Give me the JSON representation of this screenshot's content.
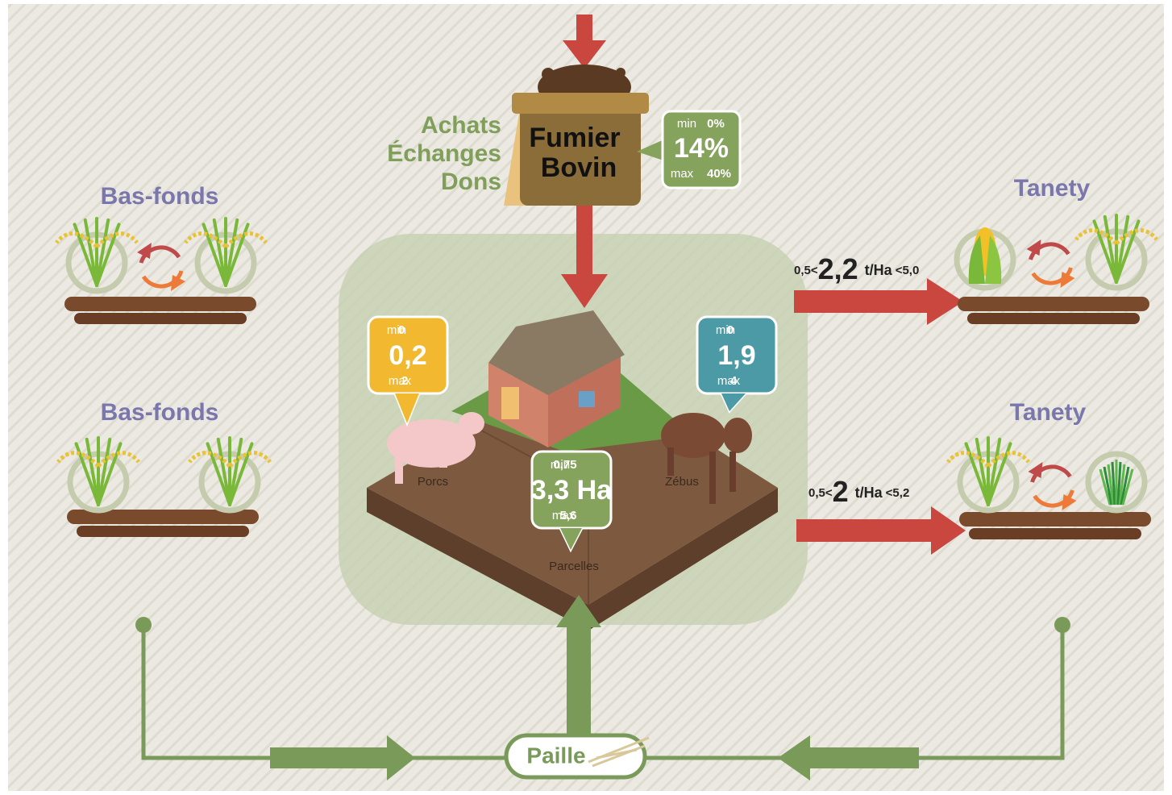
{
  "manure": {
    "sources": [
      "Achats",
      "Échanges",
      "Dons"
    ],
    "name": [
      "Fumier",
      "Bovin"
    ],
    "share": {
      "min_label": "min",
      "min": "0%",
      "value": "14%",
      "max_label": "max",
      "max": "40%"
    }
  },
  "farm": {
    "pigs": {
      "label": "Porcs",
      "min_label": "min",
      "min": "0",
      "value": "0,2",
      "max_label": "max",
      "max": "2"
    },
    "zebus": {
      "label": "Zébus",
      "min_label": "min",
      "min": "0",
      "value": "1,9",
      "max_label": "max",
      "max": "4"
    },
    "plots": {
      "label": "Parcelles",
      "min_label": "min",
      "min": "0,75",
      "value": "3,3 Ha",
      "max_label": "max",
      "max": "5,6"
    }
  },
  "fields": [
    {
      "label": "Bas-fonds"
    },
    {
      "label": "Bas-fonds"
    },
    {
      "label": "Tanety",
      "yield": {
        "low": "0,5<",
        "value": "2,2",
        "unit": "t/Ha",
        "high": "<5,0"
      }
    },
    {
      "label": "Tanety",
      "yield": {
        "low": "0,5<",
        "value": "2",
        "unit": "t/Ha",
        "high": "<5,2"
      }
    }
  ],
  "straw": {
    "label": "Paille"
  }
}
